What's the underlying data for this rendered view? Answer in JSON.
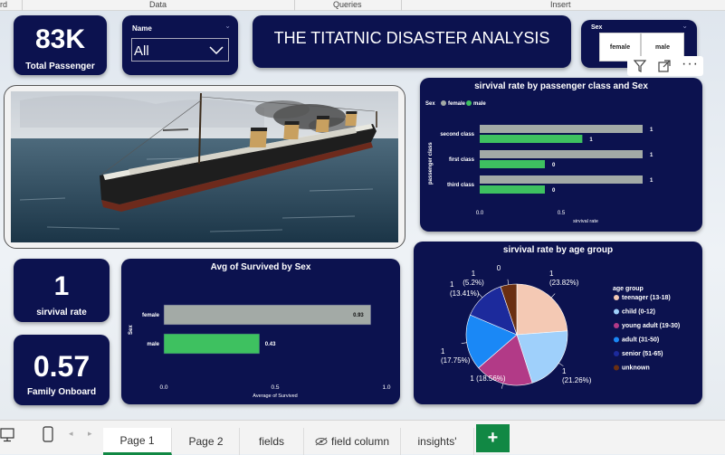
{
  "ribbon": {
    "left_fragment": "rd",
    "data": "Data",
    "queries": "Queries",
    "insert": "Insert"
  },
  "kpis": {
    "total_passenger": {
      "value": "83K",
      "label": "Total Passenger"
    },
    "survival_rate": {
      "value": "1",
      "label": "sirvival rate"
    },
    "family_onboard": {
      "value": "0.57",
      "label": "Family Onboard"
    }
  },
  "name_slicer": {
    "label": "Name",
    "value": "All"
  },
  "report_title": "THE TITATNIC DISASTER ANALYSIS",
  "sex_slicer": {
    "label": "Sex",
    "options": [
      "female",
      "male"
    ]
  },
  "visual_icons": {
    "filter": "filter-icon",
    "focus": "focus-mode-icon",
    "more": "more-options-icon"
  },
  "colors": {
    "card": "#0c124f",
    "female": "#a3aaa6",
    "male": "#3ec160",
    "accent": "#118844"
  },
  "chart_data": [
    {
      "type": "bar",
      "title": "sirvival rate by passenger class and Sex",
      "legend_title": "Sex",
      "legend": [
        "female",
        "male"
      ],
      "categories": [
        "second class",
        "first class",
        "third class"
      ],
      "series": [
        {
          "name": "female",
          "values": [
            1,
            1,
            1
          ],
          "labels": [
            "1",
            "1",
            "1"
          ]
        },
        {
          "name": "male",
          "values": [
            0.63,
            0.4,
            0.4
          ],
          "labels": [
            "1",
            "0",
            "0"
          ]
        }
      ],
      "xlabel": "sirvival rate",
      "ylabel": "passenger class",
      "xticks": [
        "0.0",
        "0.5"
      ],
      "xlim": [
        0,
        1
      ]
    },
    {
      "type": "bar",
      "title": "Avg of Survived by Sex",
      "categories": [
        "female",
        "male"
      ],
      "values": [
        0.93,
        0.43
      ],
      "labels": [
        "0.93",
        "0.43"
      ],
      "xlabel": "Average of Survived",
      "ylabel": "Sex",
      "xticks": [
        "0.0",
        "0.5",
        "1.0"
      ],
      "xlim": [
        0,
        1
      ]
    },
    {
      "type": "pie",
      "title": "sirvival rate by age group",
      "legend_title": "age group",
      "slices": [
        {
          "name": "teenager (13-18)",
          "value": 23.82,
          "label": "1\n(23.82%)",
          "color": "#f4c9b4"
        },
        {
          "name": "child (0-12)",
          "value": 21.26,
          "label": "1\n(21.26%)",
          "color": "#9fd0fb"
        },
        {
          "name": "young adult (19-30)",
          "value": 18.56,
          "label": "1 (18.56%)",
          "color": "#b23a87"
        },
        {
          "name": "adult (31-50)",
          "value": 17.75,
          "label": "1\n(17.75%)",
          "color": "#1a88f6"
        },
        {
          "name": "senior (51-65)",
          "value": 13.41,
          "label": "1\n(13.41%)",
          "color": "#1c2a9c"
        },
        {
          "name": "unknown",
          "value": 5.2,
          "label": "1\n(5.2%)",
          "color": "#6a2f12"
        }
      ],
      "extra_label": "0"
    }
  ],
  "tabs": [
    "Page 1",
    "Page 2",
    "fields",
    "field column",
    "insights'"
  ],
  "add_tab": "+"
}
